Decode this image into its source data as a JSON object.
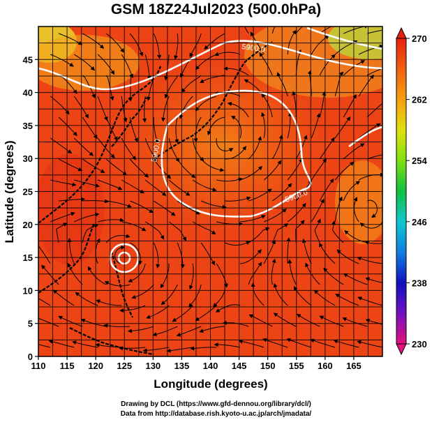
{
  "title": "GSM 18Z24Jul2023 (500.0hPa)",
  "map": {
    "xlabel": "Longitude (degrees)",
    "ylabel": "Latitude  (degrees)",
    "lon_range": [
      110,
      170
    ],
    "lat_range": [
      0,
      50
    ],
    "lon_ticks": [
      "110",
      "115",
      "120",
      "125",
      "130",
      "135",
      "140",
      "145",
      "150",
      "155",
      "160",
      "165"
    ],
    "lat_ticks": [
      "0",
      "5",
      "10",
      "15",
      "20",
      "25",
      "30",
      "35",
      "40",
      "45"
    ],
    "contour_labels": [
      "5900.0",
      "5900.0",
      "5900.0"
    ],
    "field_colors": {
      "low": "#e82a14",
      "mid": "#f06a12",
      "warm": "#f5a31a",
      "cool": "#e8e030",
      "greenish": "#b8e040"
    }
  },
  "colorbar": {
    "min": 230,
    "max": 270,
    "tick_labels": [
      "230",
      "238",
      "246",
      "254",
      "262",
      "270"
    ],
    "colors": [
      "#e8107a",
      "#7010c0",
      "#1010c0",
      "#1080e0",
      "#10c8d0",
      "#10c040",
      "#80e010",
      "#e0e010",
      "#f5a010",
      "#f06010",
      "#e82010"
    ]
  },
  "credits": {
    "line1": "Drawing by DCL (https://www.gfd-dennou.org/library/dcl/)",
    "line2": "Data from http://database.rish.kyoto-u.ac.jp/arch/jmadata/"
  }
}
